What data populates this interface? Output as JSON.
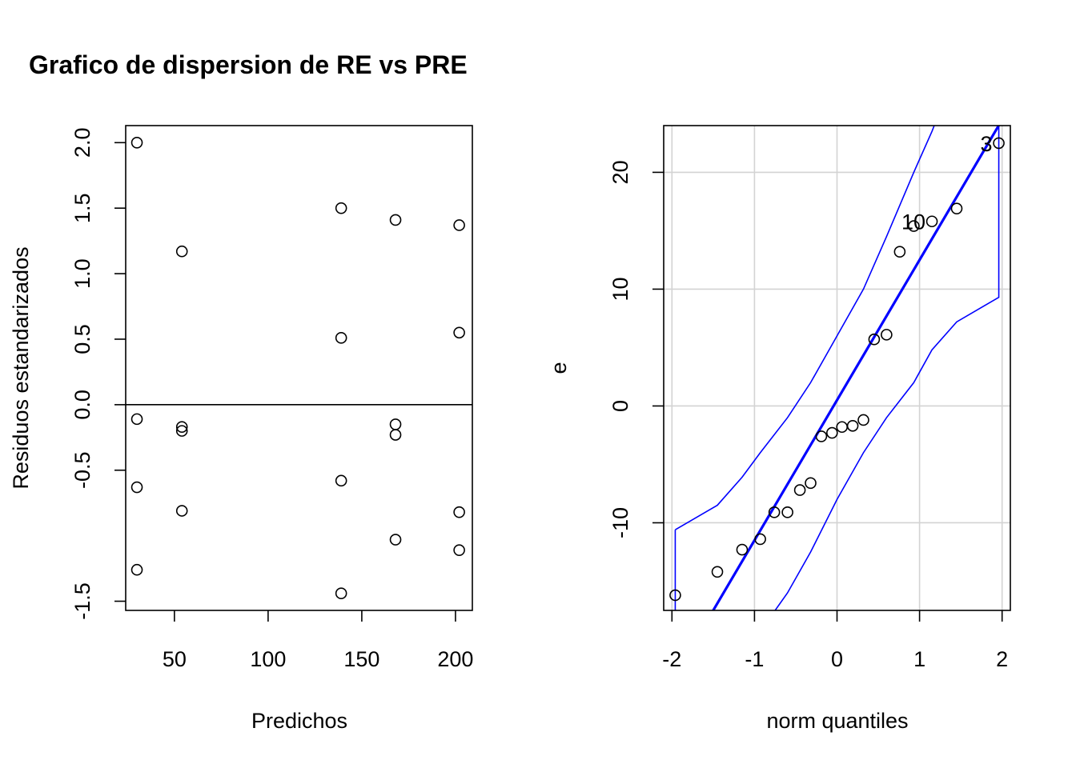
{
  "title": "Grafico de dispersion de RE vs PRE",
  "chart_data": [
    {
      "type": "scatter",
      "xlabel": "Predichos",
      "ylabel": "Residuos estandarizados",
      "xlim": [
        24,
        209
      ],
      "ylim": [
        -1.57,
        2.13
      ],
      "xticks": [
        50,
        100,
        150,
        200
      ],
      "yticks": [
        -1.5,
        -0.5,
        0.0,
        0.5,
        1.0,
        1.5,
        2.0
      ],
      "hline": 0,
      "grid": false,
      "points": [
        {
          "x": 30,
          "y": 2.0
        },
        {
          "x": 30,
          "y": -0.11
        },
        {
          "x": 30,
          "y": -0.63
        },
        {
          "x": 30,
          "y": -1.26
        },
        {
          "x": 54,
          "y": 1.17
        },
        {
          "x": 54,
          "y": -0.17
        },
        {
          "x": 54,
          "y": -0.2
        },
        {
          "x": 54,
          "y": -0.81
        },
        {
          "x": 139,
          "y": 1.5
        },
        {
          "x": 139,
          "y": 0.51
        },
        {
          "x": 139,
          "y": -0.58
        },
        {
          "x": 139,
          "y": -1.44
        },
        {
          "x": 168,
          "y": 1.41
        },
        {
          "x": 168,
          "y": -0.15
        },
        {
          "x": 168,
          "y": -0.23
        },
        {
          "x": 168,
          "y": -1.03
        },
        {
          "x": 202,
          "y": 1.37
        },
        {
          "x": 202,
          "y": 0.55
        },
        {
          "x": 202,
          "y": -0.82
        },
        {
          "x": 202,
          "y": -1.11
        }
      ]
    },
    {
      "type": "scatter",
      "xlabel": "norm quantiles",
      "ylabel": "e",
      "xlim": [
        -2.1,
        2.1
      ],
      "ylim": [
        -17.5,
        24
      ],
      "xticks": [
        -2,
        -1,
        0,
        1,
        2
      ],
      "yticks": [
        -10,
        0,
        10,
        20
      ],
      "grid": true,
      "colors": {
        "line": "#0000ff",
        "envelope": "#0000ff",
        "grid": "#d3d3d3"
      },
      "points": [
        {
          "x": -1.96,
          "y": -16.2
        },
        {
          "x": -1.45,
          "y": -14.2
        },
        {
          "x": -1.15,
          "y": -12.3
        },
        {
          "x": -0.93,
          "y": -11.4
        },
        {
          "x": -0.76,
          "y": -9.1
        },
        {
          "x": -0.6,
          "y": -9.1
        },
        {
          "x": -0.45,
          "y": -7.2
        },
        {
          "x": -0.32,
          "y": -6.6
        },
        {
          "x": -0.19,
          "y": -2.6
        },
        {
          "x": -0.06,
          "y": -2.3
        },
        {
          "x": 0.06,
          "y": -1.8
        },
        {
          "x": 0.19,
          "y": -1.7
        },
        {
          "x": 0.32,
          "y": -1.2
        },
        {
          "x": 0.45,
          "y": 5.7
        },
        {
          "x": 0.6,
          "y": 6.1
        },
        {
          "x": 0.76,
          "y": 13.2
        },
        {
          "x": 0.93,
          "y": 15.4
        },
        {
          "x": 1.15,
          "y": 15.8
        },
        {
          "x": 1.45,
          "y": 16.9
        },
        {
          "x": 1.96,
          "y": 22.5
        }
      ],
      "point_labels": [
        {
          "text": "10",
          "x": 1.15,
          "y": 15.8
        },
        {
          "text": "3",
          "x": 1.96,
          "y": 22.5
        }
      ],
      "reference_line": {
        "intercept": 0.5,
        "slope": 12.0
      },
      "envelope_upper": [
        {
          "x": -1.96,
          "y": -10.6
        },
        {
          "x": -1.45,
          "y": -8.5
        },
        {
          "x": -1.15,
          "y": -6.1
        },
        {
          "x": -0.93,
          "y": -4.0
        },
        {
          "x": -0.6,
          "y": -1.0
        },
        {
          "x": -0.32,
          "y": 2.0
        },
        {
          "x": 0.0,
          "y": 6.0
        },
        {
          "x": 0.32,
          "y": 10.0
        },
        {
          "x": 0.6,
          "y": 14.5
        },
        {
          "x": 0.93,
          "y": 20.0
        },
        {
          "x": 1.15,
          "y": 23.5
        },
        {
          "x": 1.4,
          "y": 28.0
        }
      ],
      "envelope_lower": [
        {
          "x": -0.75,
          "y": -17.5
        },
        {
          "x": -0.6,
          "y": -16.0
        },
        {
          "x": -0.32,
          "y": -12.5
        },
        {
          "x": 0.0,
          "y": -8.0
        },
        {
          "x": 0.32,
          "y": -4.0
        },
        {
          "x": 0.6,
          "y": -1.0
        },
        {
          "x": 0.93,
          "y": 2.0
        },
        {
          "x": 1.15,
          "y": 4.8
        },
        {
          "x": 1.45,
          "y": 7.2
        },
        {
          "x": 1.96,
          "y": 9.3
        },
        {
          "x": 1.96,
          "y": 24.0
        }
      ],
      "envelope_left_edge": {
        "x": -1.96,
        "y_from": -10.6,
        "y_to": -17.5
      }
    }
  ]
}
